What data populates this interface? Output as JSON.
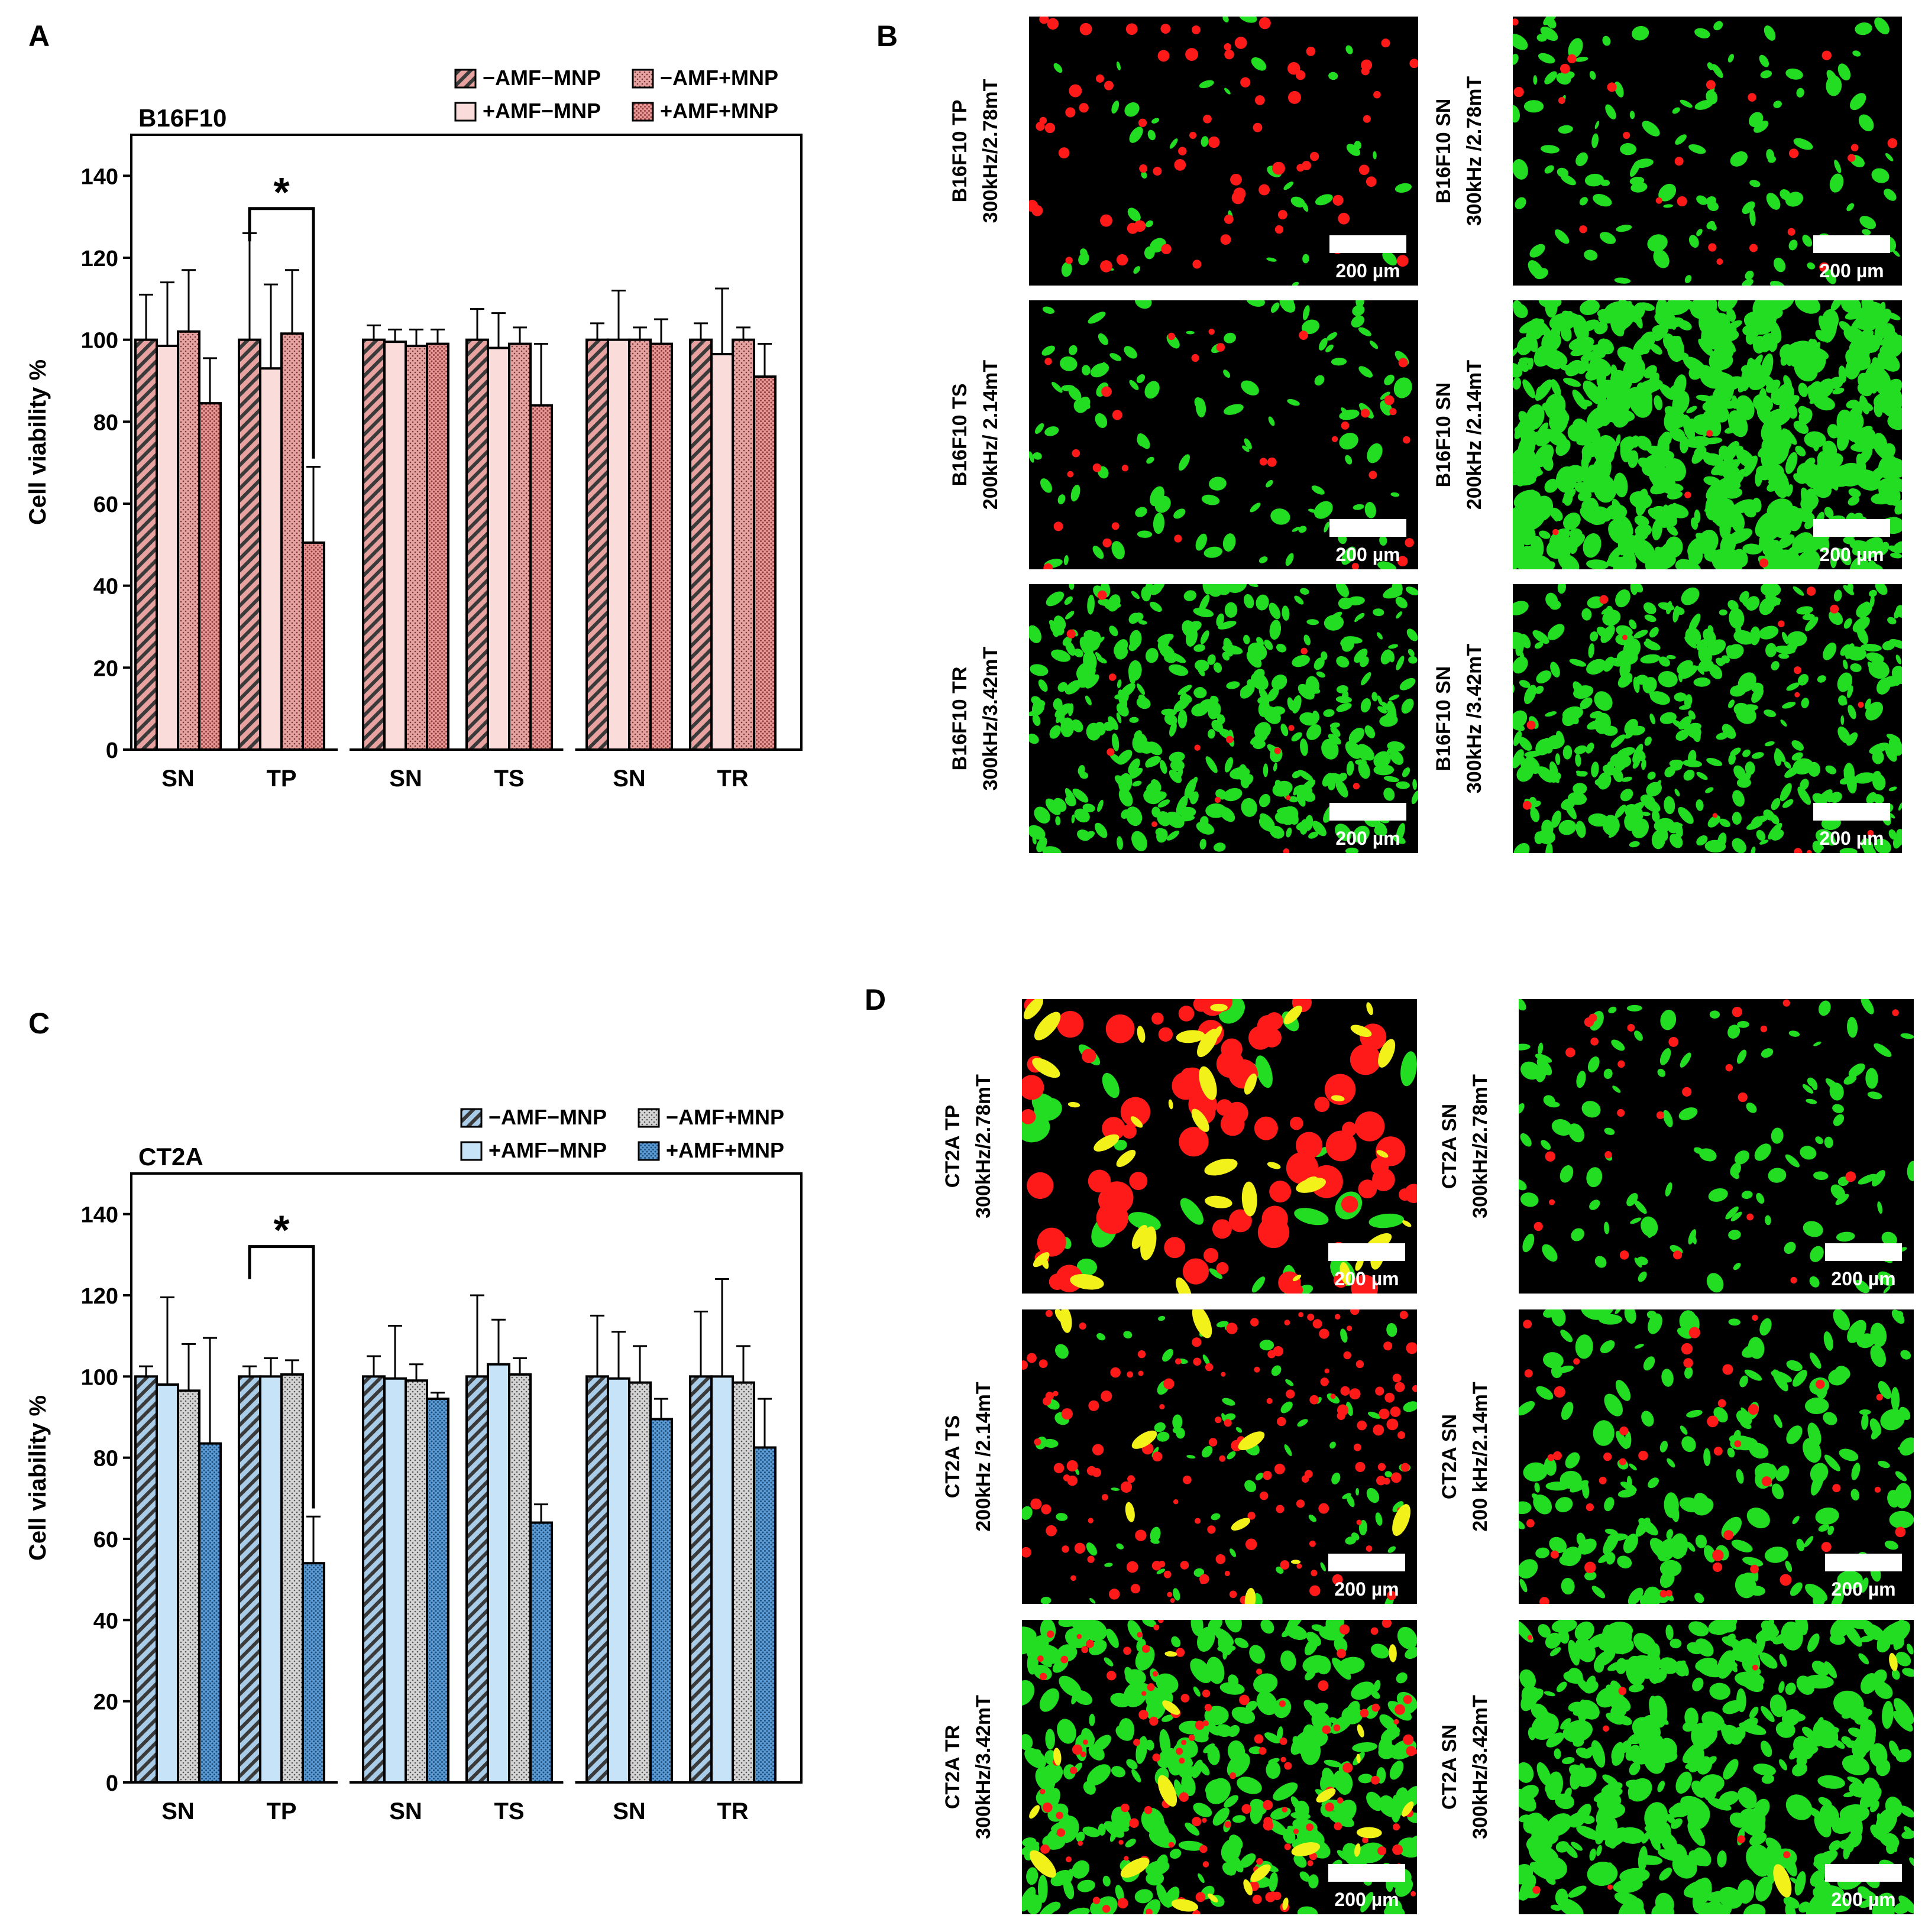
{
  "panels": {
    "A": {
      "letter": "A"
    },
    "B": {
      "letter": "B"
    },
    "C": {
      "letter": "C"
    },
    "D": {
      "letter": "D"
    }
  },
  "scale_bar_label": "200 µm",
  "chart_data": [
    {
      "type": "bar",
      "panel": "A",
      "title": "B16F10",
      "ylabel": "Cell viability %",
      "xlabel": "",
      "ylim": [
        0,
        150
      ],
      "yticks": [
        0,
        20,
        40,
        60,
        80,
        100,
        120,
        140
      ],
      "grid": false,
      "legend_placement": "top-right",
      "categories": [
        "SN",
        "TP",
        "SN",
        "TS",
        "SN",
        "TR"
      ],
      "series": [
        {
          "name": "−AMF−MNP",
          "pattern": "hatch",
          "color": "#e8a3a1",
          "values": [
            100,
            100,
            100,
            100,
            100,
            100
          ],
          "errors": [
            11,
            26,
            3.5,
            7.5,
            4,
            4
          ]
        },
        {
          "name": "+AMF−MNP",
          "pattern": "solid",
          "color": "#fadcdb",
          "values": [
            98.5,
            93,
            99.5,
            98,
            100,
            96.5
          ],
          "errors": [
            15.5,
            20.5,
            3,
            8.5,
            12,
            16
          ]
        },
        {
          "name": "−AMF+MNP",
          "pattern": "dots",
          "color": "#e8a3a1",
          "values": [
            102,
            101.5,
            98.5,
            99,
            100,
            100
          ],
          "errors": [
            15,
            15.5,
            4,
            4,
            3,
            3
          ]
        },
        {
          "name": "+AMF+MNP",
          "pattern": "dots-dense",
          "color": "#e89593",
          "values": [
            84.5,
            50.5,
            99,
            84,
            99,
            91
          ],
          "errors": [
            11,
            18.5,
            3.5,
            15,
            6,
            8
          ]
        }
      ],
      "annotation": {
        "text": "*",
        "between": [
          "TP −AMF−MNP",
          "TP +AMF+MNP"
        ]
      }
    },
    {
      "type": "bar",
      "panel": "C",
      "title": "CT2A",
      "ylabel": "Cell viability %",
      "xlabel": "",
      "ylim": [
        0,
        150
      ],
      "yticks": [
        0,
        20,
        40,
        60,
        80,
        100,
        120,
        140
      ],
      "grid": false,
      "legend_placement": "top-right",
      "categories": [
        "SN",
        "TP",
        "SN",
        "TS",
        "SN",
        "TR"
      ],
      "series": [
        {
          "name": "−AMF−MNP",
          "pattern": "hatch",
          "color": "#a9cce8",
          "values": [
            100,
            100,
            100,
            100,
            100,
            100
          ],
          "errors": [
            2.5,
            2.5,
            5,
            20,
            15,
            16
          ]
        },
        {
          "name": "+AMF−MNP",
          "pattern": "solid",
          "color": "#c6e3f7",
          "values": [
            98,
            100,
            99.5,
            103,
            99.5,
            100
          ],
          "errors": [
            21.5,
            4.5,
            13,
            11,
            11.5,
            24
          ]
        },
        {
          "name": "−AMF+MNP",
          "pattern": "dots",
          "color": "#c8c8c8",
          "values": [
            96.5,
            100.5,
            99,
            100.5,
            98.5,
            98.5
          ],
          "errors": [
            11.5,
            3.5,
            4,
            4,
            9,
            9
          ]
        },
        {
          "name": "+AMF+MNP",
          "pattern": "dots-dense",
          "color": "#5b9bd5",
          "values": [
            83.5,
            54,
            94.5,
            64,
            89.5,
            82.5
          ],
          "errors": [
            26,
            11.5,
            1.5,
            4.5,
            5,
            12
          ]
        }
      ],
      "annotation": {
        "text": "*",
        "between": [
          "TP −AMF−MNP",
          "TP +AMF+MNP"
        ]
      }
    }
  ],
  "micrographs": {
    "B": [
      {
        "label_line1": "B16F10 TP",
        "label_line2": "300kHz/2.78mT",
        "style": "sparse-mixed"
      },
      {
        "label_line1": "B16F10 SN",
        "label_line2": "300kHz /2.78mT",
        "style": "green-sparse"
      },
      {
        "label_line1": "B16F10 TS",
        "label_line2": "200kHz/ 2.14mT",
        "style": "green-sparse-red"
      },
      {
        "label_line1": "B16F10 SN",
        "label_line2": "200kHz /2.14mT",
        "style": "green-dense"
      },
      {
        "label_line1": "B16F10 TR",
        "label_line2": "300kHz/3.42mT",
        "style": "green-medium"
      },
      {
        "label_line1": "B16F10 SN",
        "label_line2": "300kHz /3.42mT",
        "style": "green-medium"
      }
    ],
    "D": [
      {
        "label_line1": "CT2A TP",
        "label_line2": "300kHz/2.78mT",
        "style": "red-yellow"
      },
      {
        "label_line1": "CT2A SN",
        "label_line2": "300kHz/2.78mT",
        "style": "green-sparse"
      },
      {
        "label_line1": "CT2A TS",
        "label_line2": "200kHz /2.14mT",
        "style": "red-dots"
      },
      {
        "label_line1": "CT2A SN",
        "label_line2": "200 kHz/2.14mT",
        "style": "green-elong"
      },
      {
        "label_line1": "CT2A TR",
        "label_line2": "300kHz/3.42mT",
        "style": "green-red-clusters"
      },
      {
        "label_line1": "CT2A SN",
        "label_line2": "300kHz/3.42mT",
        "style": "green-elong-dense"
      }
    ]
  }
}
